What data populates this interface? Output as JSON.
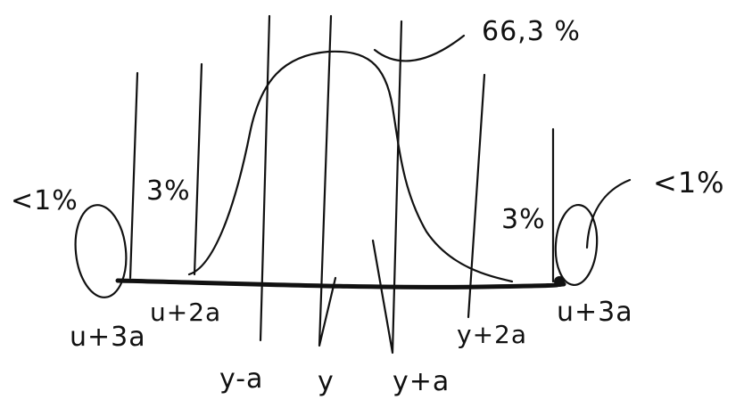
{
  "labels": {
    "peak_percent": "66,3 %",
    "left_inner_percent": "3%",
    "right_inner_percent": "3%",
    "left_tail_percent": "<1%",
    "right_tail_percent": "<1%",
    "left_outer_tick": "u+3a",
    "left_second_tick": "u+2a",
    "left_first_tick": "y-a",
    "center_tick": "y",
    "right_first_tick": "y+a",
    "right_second_tick": "y+2a",
    "right_outer_tick": "u+3a"
  },
  "colors": {
    "ink": "#111111",
    "background": "#ffffff"
  }
}
